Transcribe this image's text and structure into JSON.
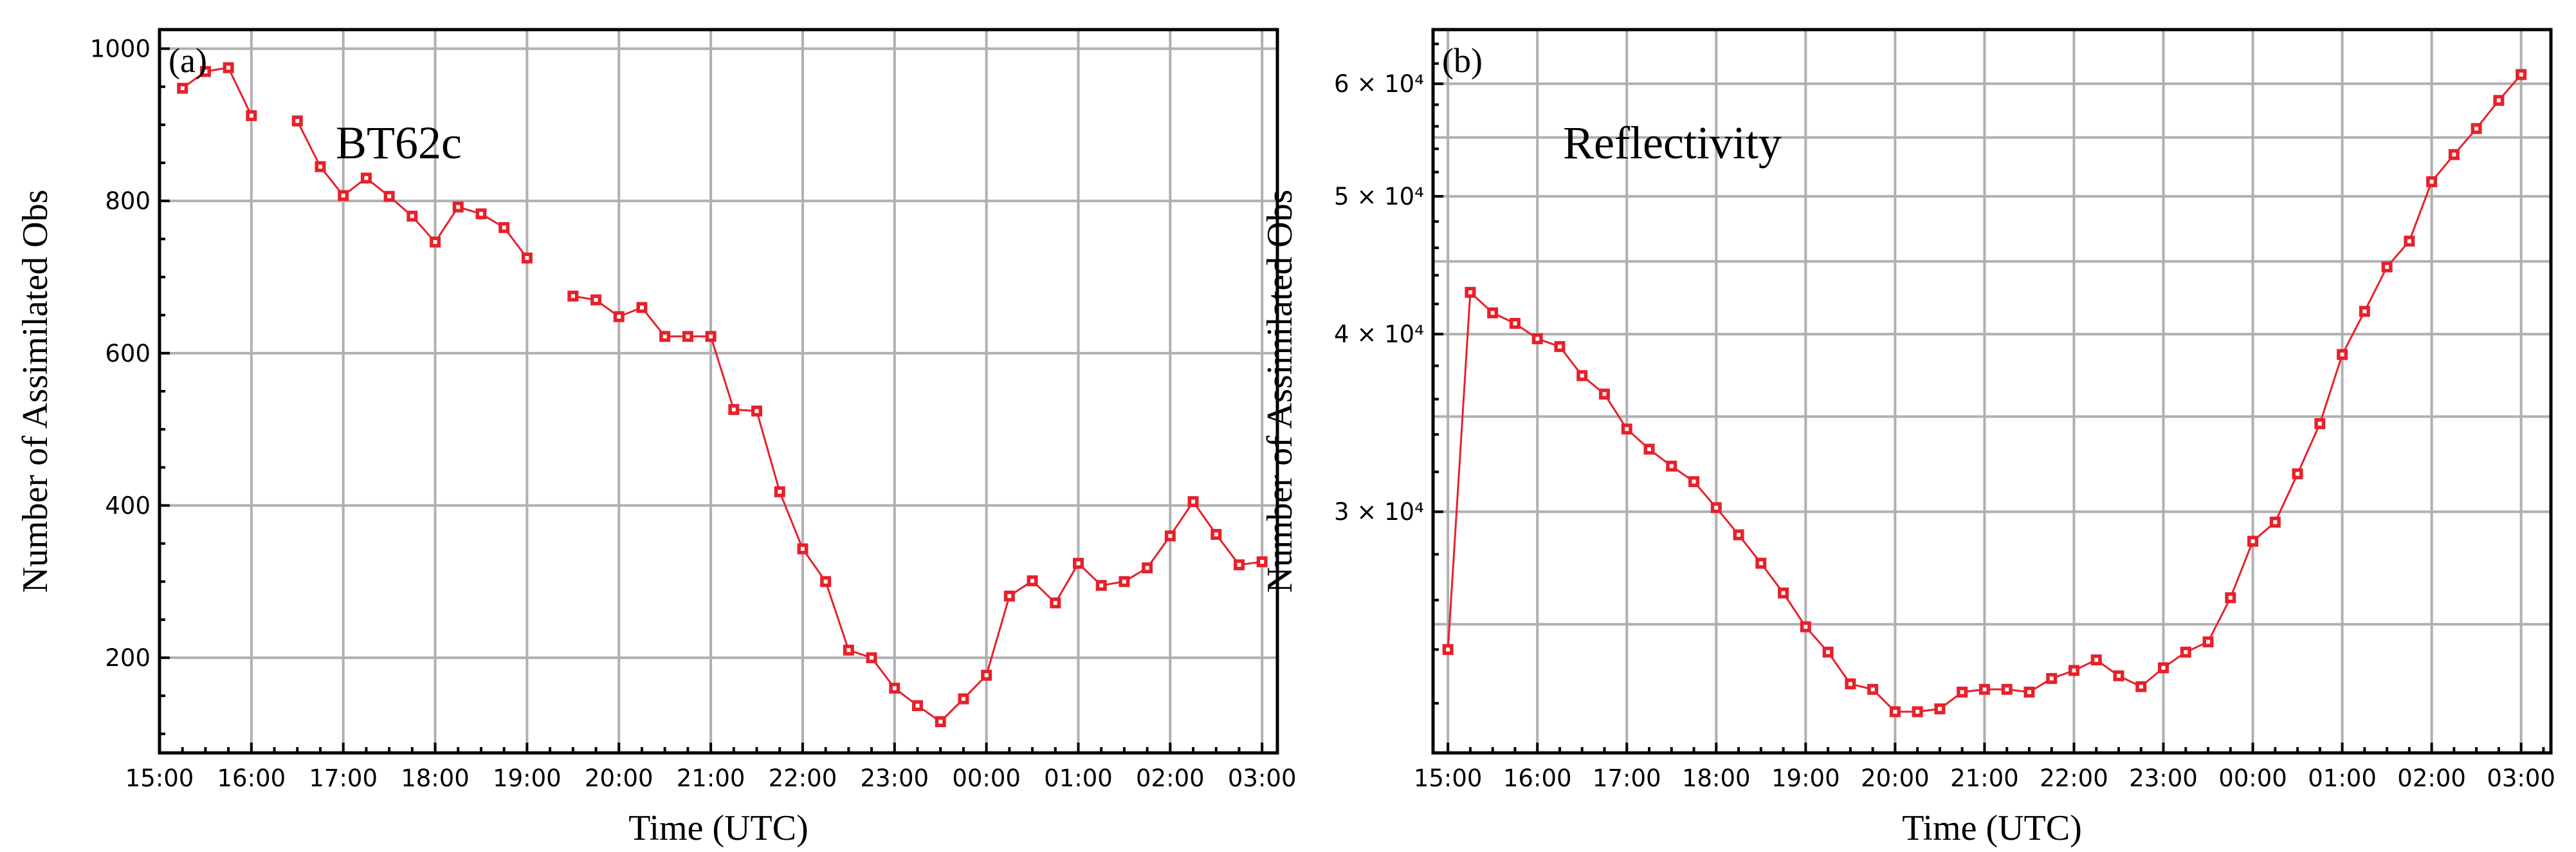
{
  "colors": {
    "series": "#e8202a",
    "grid": "#b0b0b0"
  },
  "chart_data": [
    {
      "type": "line",
      "panel_label": "(a)",
      "annotation": "BT62c",
      "xlabel": "Time (UTC)",
      "ylabel": "Number of Assimilated Obs",
      "yscale": "linear",
      "xlim": [
        "15:00",
        "03:10"
      ],
      "ylim": [
        75,
        1025
      ],
      "grid": true,
      "x_ticks": [
        "15:00",
        "16:00",
        "17:00",
        "18:00",
        "19:00",
        "20:00",
        "21:00",
        "22:00",
        "23:00",
        "00:00",
        "01:00",
        "02:00",
        "03:00"
      ],
      "y_ticks": [
        200,
        400,
        600,
        800,
        1000
      ],
      "y_tick_labels": [
        "200",
        "400",
        "600",
        "800",
        "1000"
      ],
      "series": [
        {
          "x": [
            "15:15",
            "15:30",
            "15:45",
            "16:00",
            "16:15",
            "16:30",
            "16:45",
            "17:00",
            "17:15",
            "17:30",
            "17:45",
            "18:00",
            "18:15",
            "18:30",
            "18:45",
            "19:00",
            "19:15",
            "19:30",
            "19:45",
            "20:00",
            "20:15",
            "20:30",
            "20:45",
            "21:00",
            "21:15",
            "21:30",
            "21:45",
            "22:00",
            "22:15",
            "22:30",
            "22:45",
            "23:00",
            "23:15",
            "23:30",
            "23:45",
            "00:00",
            "00:15",
            "00:30",
            "00:45",
            "01:00",
            "01:15",
            "01:30",
            "01:45",
            "02:00",
            "02:15",
            "02:30",
            "02:45",
            "03:00"
          ],
          "values": [
            948,
            970,
            975,
            912,
            null,
            905,
            845,
            807,
            830,
            806,
            780,
            746,
            792,
            783,
            765,
            725,
            null,
            675,
            670,
            648,
            660,
            622,
            622,
            622,
            526,
            524,
            418,
            343,
            300,
            210,
            200,
            160,
            137,
            116,
            146,
            177,
            281,
            301,
            272,
            324,
            295,
            300,
            318,
            360,
            405,
            362,
            322,
            326
          ]
        }
      ]
    },
    {
      "type": "line",
      "panel_label": "(b)",
      "annotation": "Reflectivity",
      "xlabel": "Time (UTC)",
      "ylabel": "Number of Assimilated Obs",
      "yscale": "log",
      "xlim": [
        "14:50",
        "03:20"
      ],
      "ylim": [
        20300,
        65500
      ],
      "grid": true,
      "x_ticks": [
        "15:00",
        "16:00",
        "17:00",
        "18:00",
        "19:00",
        "20:00",
        "21:00",
        "22:00",
        "23:00",
        "00:00",
        "01:00",
        "02:00",
        "03:00"
      ],
      "y_ticks": [
        30000,
        40000,
        50000,
        60000
      ],
      "y_tick_labels": [
        "3 × 10⁴",
        "4 × 10⁴",
        "5 × 10⁴",
        "6 × 10⁴"
      ],
      "y_minor_ticks": [
        22000,
        24000,
        26000,
        28000,
        32000,
        34000,
        36000,
        38000,
        42000,
        44000,
        46000,
        48000,
        52000,
        54000,
        56000,
        58000,
        62000,
        64000
      ],
      "y_minor_gridlines": [
        25000,
        35000,
        45000,
        55000
      ],
      "series": [
        {
          "x": [
            "15:00",
            "15:15",
            "15:30",
            "15:45",
            "16:00",
            "16:15",
            "16:30",
            "16:45",
            "17:00",
            "17:15",
            "17:30",
            "17:45",
            "18:00",
            "18:15",
            "18:30",
            "18:45",
            "19:00",
            "19:15",
            "19:30",
            "19:45",
            "20:00",
            "20:15",
            "20:30",
            "20:45",
            "21:00",
            "21:15",
            "21:30",
            "21:45",
            "22:00",
            "22:15",
            "22:30",
            "22:45",
            "23:00",
            "23:15",
            "23:30",
            "23:45",
            "00:00",
            "00:15",
            "00:30",
            "00:45",
            "01:00",
            "01:15",
            "01:30",
            "01:45",
            "02:00",
            "02:15",
            "02:30",
            "02:45",
            "03:00"
          ],
          "values": [
            24000,
            42800,
            41400,
            40700,
            39700,
            39200,
            37400,
            36300,
            34300,
            33200,
            32300,
            31500,
            30200,
            28900,
            27600,
            26300,
            24900,
            23900,
            22700,
            22500,
            21700,
            21700,
            21800,
            22400,
            22500,
            22500,
            22400,
            22900,
            23200,
            23600,
            23000,
            22600,
            23300,
            23900,
            24300,
            26100,
            28600,
            29500,
            31900,
            34600,
            38700,
            41500,
            44600,
            46500,
            51200,
            53500,
            55800,
            58400,
            60900
          ]
        }
      ]
    }
  ]
}
